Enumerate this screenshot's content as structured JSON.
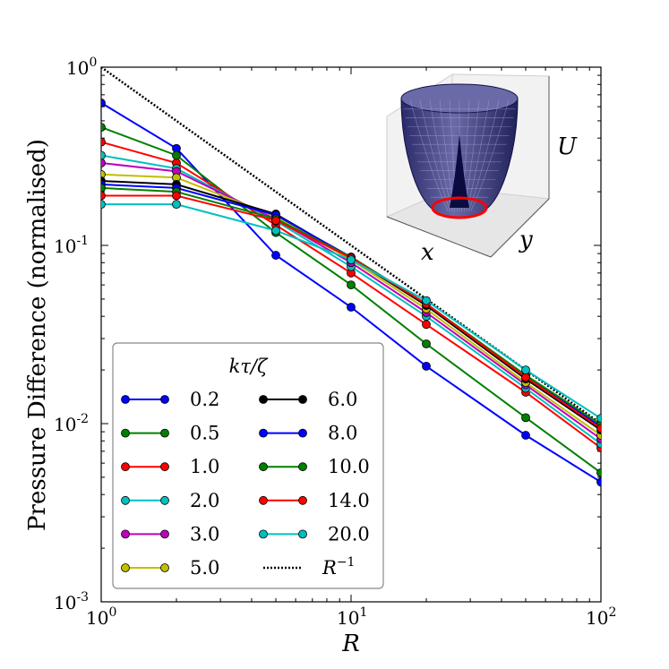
{
  "chart_data": {
    "type": "line",
    "xlabel": "R",
    "ylabel": "Pressure Difference (normalised)",
    "xscale": "log",
    "yscale": "log",
    "xlim": [
      1,
      100
    ],
    "ylim": [
      0.001,
      1
    ],
    "x_tick_labels": [
      {
        "base": "10",
        "exp": "0"
      },
      {
        "base": "10",
        "exp": "1"
      },
      {
        "base": "10",
        "exp": "2"
      }
    ],
    "y_tick_labels": [
      {
        "base": "10",
        "exp": "-3"
      },
      {
        "base": "10",
        "exp": "-2"
      },
      {
        "base": "10",
        "exp": "-1"
      },
      {
        "base": "10",
        "exp": "0"
      }
    ],
    "x": [
      1,
      2,
      5,
      10,
      20,
      50,
      100
    ],
    "legend": {
      "title": "kτ/ζ",
      "placement": "lower-left",
      "columns": 2
    },
    "series": [
      {
        "name": "0.2",
        "color": "#0000ff",
        "values": [
          0.63,
          0.35,
          0.088,
          0.045,
          0.021,
          0.0086,
          0.0047
        ]
      },
      {
        "name": "0.5",
        "color": "#008000",
        "values": [
          0.46,
          0.32,
          0.118,
          0.06,
          0.028,
          0.0108,
          0.0053
        ]
      },
      {
        "name": "1.0",
        "color": "#ff0000",
        "values": [
          0.38,
          0.29,
          0.13,
          0.07,
          0.036,
          0.015,
          0.0073
        ]
      },
      {
        "name": "2.0",
        "color": "#00bfbf",
        "values": [
          0.32,
          0.27,
          0.137,
          0.076,
          0.04,
          0.0158,
          0.0077
        ]
      },
      {
        "name": "3.0",
        "color": "#bf00bf",
        "values": [
          0.29,
          0.26,
          0.14,
          0.08,
          0.042,
          0.0165,
          0.0082
        ]
      },
      {
        "name": "5.0",
        "color": "#bfbf00",
        "values": [
          0.25,
          0.24,
          0.145,
          0.083,
          0.044,
          0.017,
          0.0086
        ]
      },
      {
        "name": "6.0",
        "color": "#000000",
        "values": [
          0.23,
          0.22,
          0.15,
          0.085,
          0.046,
          0.0178,
          0.0092
        ]
      },
      {
        "name": "8.0",
        "color": "#0000ff",
        "values": [
          0.22,
          0.21,
          0.148,
          0.086,
          0.047,
          0.0185,
          0.0096
        ]
      },
      {
        "name": "10.0",
        "color": "#008000",
        "values": [
          0.21,
          0.2,
          0.141,
          0.086,
          0.047,
          0.0187,
          0.0099
        ]
      },
      {
        "name": "14.0",
        "color": "#ff0000",
        "values": [
          0.19,
          0.19,
          0.138,
          0.085,
          0.047,
          0.0182,
          0.0094
        ]
      },
      {
        "name": "20.0",
        "color": "#00bfbf",
        "values": [
          0.17,
          0.17,
          0.121,
          0.083,
          0.049,
          0.02,
          0.0107
        ]
      }
    ],
    "reference": {
      "name": "R",
      "exp": "−1",
      "color": "#000000",
      "style": "dotted",
      "values": [
        1.0,
        0.5,
        0.2,
        0.1,
        0.05,
        0.02,
        0.01
      ]
    },
    "inset": {
      "type": "3d-surface",
      "xlabel": "x",
      "ylabel": "y",
      "zlabel": "U",
      "surface_color": "#1a1a6e",
      "ring_color": "#ff0000"
    },
    "grid": false
  }
}
